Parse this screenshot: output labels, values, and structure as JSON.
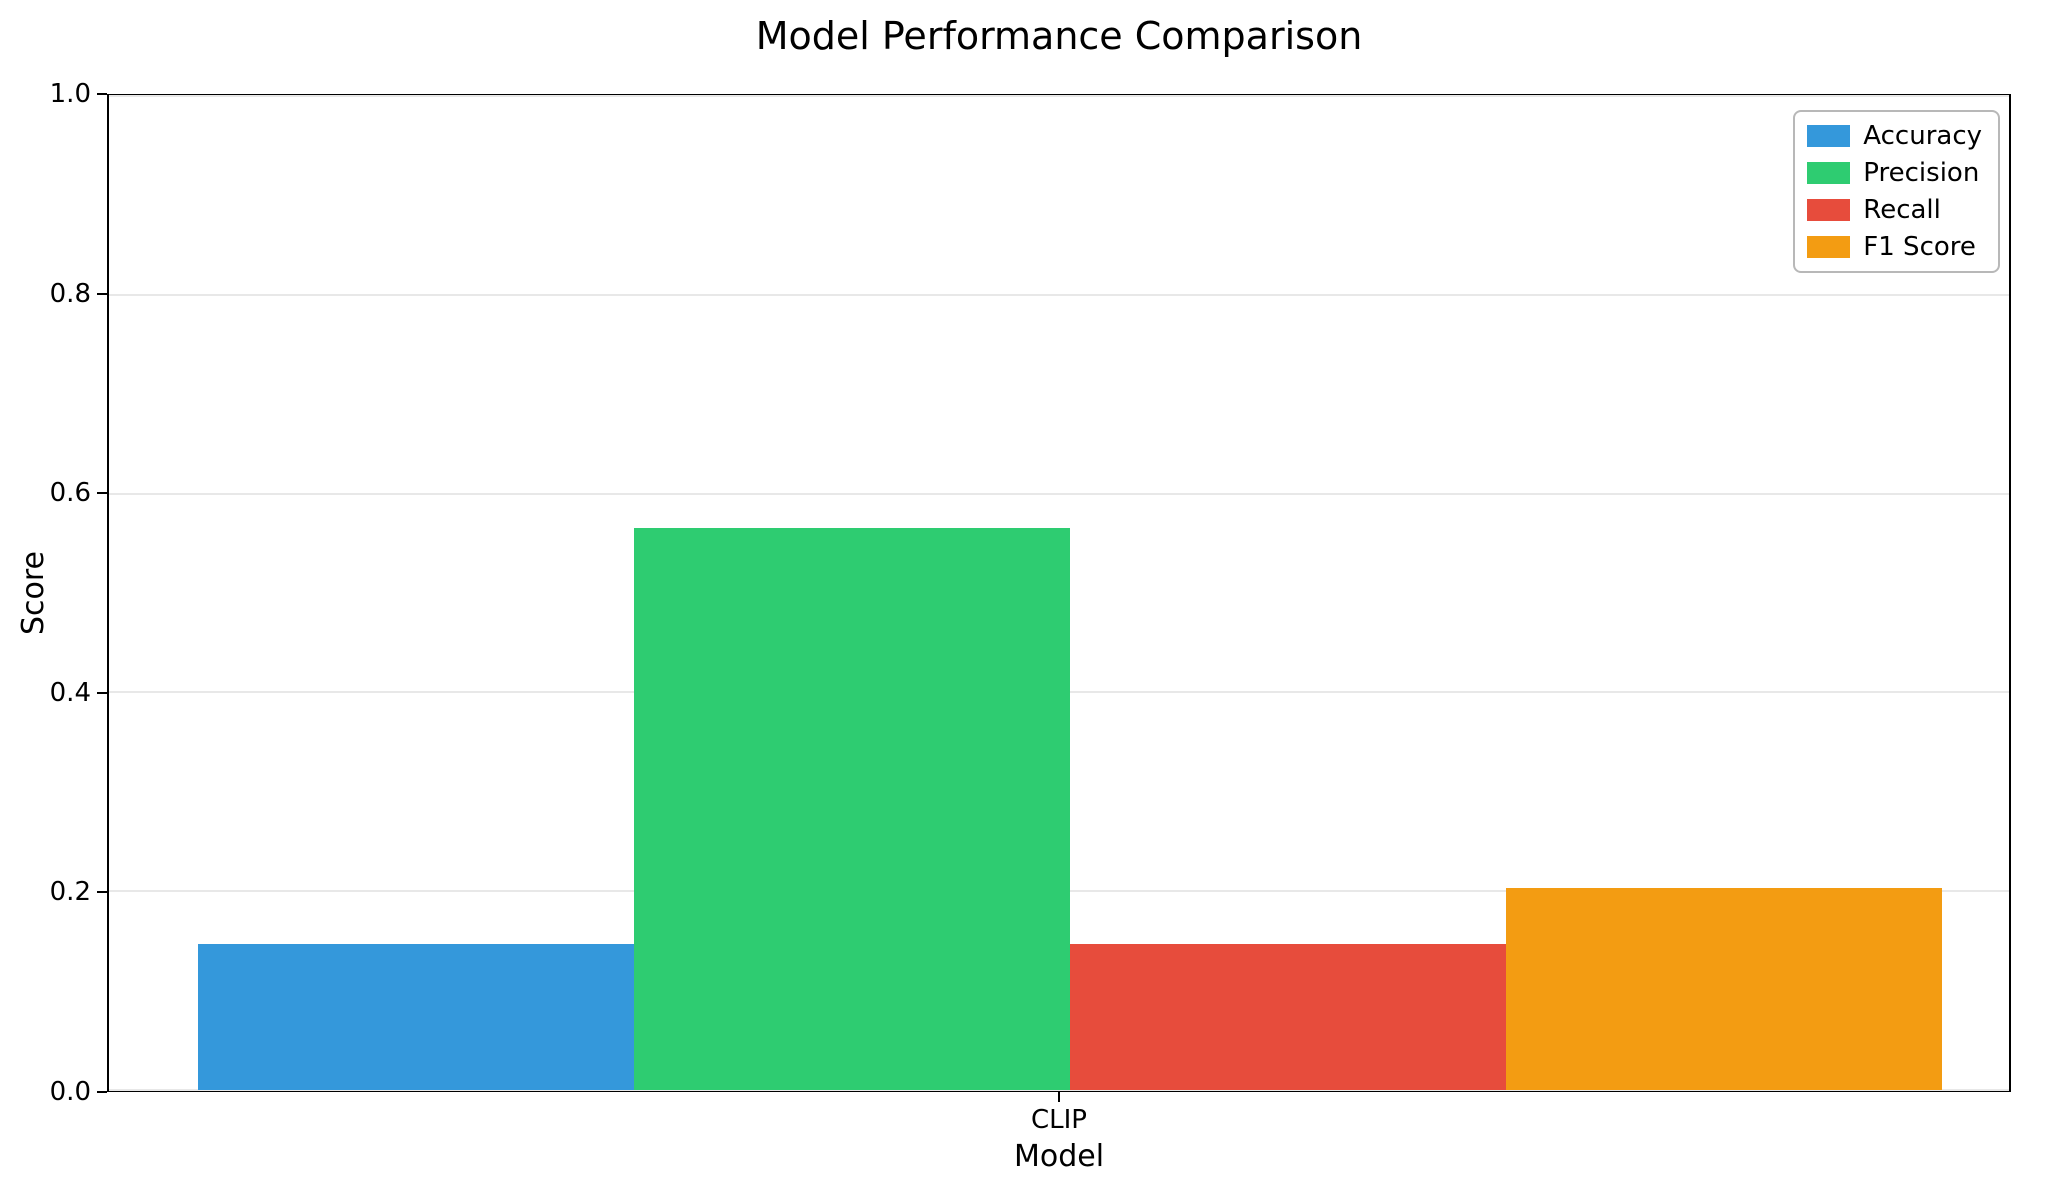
{
  "chart_data": {
    "type": "bar",
    "title": "Model Performance Comparison",
    "xlabel": "Model",
    "ylabel": "Score",
    "categories": [
      "CLIP"
    ],
    "series": [
      {
        "name": "Accuracy",
        "color": "#3498db",
        "values": [
          0.147
        ]
      },
      {
        "name": "Precision",
        "color": "#2ecc71",
        "values": [
          0.565
        ]
      },
      {
        "name": "Recall",
        "color": "#e74c3c",
        "values": [
          0.147
        ]
      },
      {
        "name": "F1 Score",
        "color": "#f39c12",
        "values": [
          0.203
        ]
      }
    ],
    "ylim": [
      0.0,
      1.0
    ],
    "yticks": [
      0.0,
      0.2,
      0.4,
      0.6,
      0.8,
      1.0
    ],
    "ytick_labels": [
      "0.0",
      "0.2",
      "0.4",
      "0.6",
      "0.8",
      "1.0"
    ],
    "grid": true,
    "grid_color": "#e8e8e8",
    "legend_position": "upper right",
    "background_color": "#ffffff",
    "spine_color": "#000000"
  }
}
